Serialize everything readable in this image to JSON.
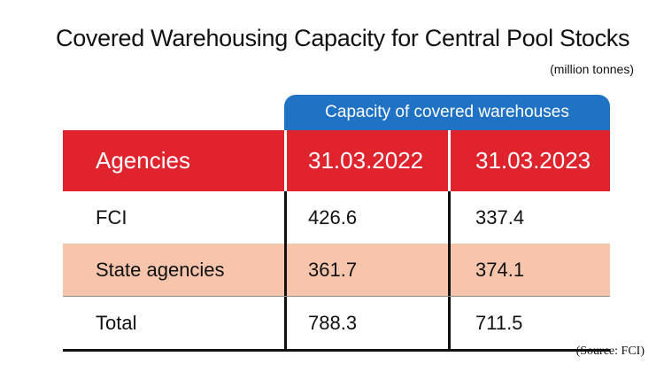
{
  "title": "Covered Warehousing Capacity for Central Pool Stocks",
  "unit": "(million tonnes)",
  "group_header": "Capacity of covered warehouses",
  "source": "(Source:  FCI)",
  "colors": {
    "group_header_bg": "#1f72c4",
    "header_row_bg": "#e0242e",
    "shaded_row_bg": "#f7c4ac"
  },
  "chart_data": {
    "type": "table",
    "title": "Covered Warehousing Capacity for Central Pool Stocks",
    "unit": "(million tonnes)",
    "group_header": "Capacity of covered warehouses",
    "columns": [
      "Agencies",
      "31.03.2022",
      "31.03.2023"
    ],
    "rows": [
      {
        "agency": "FCI",
        "values": [
          "426.6",
          "337.4"
        ]
      },
      {
        "agency": "State agencies",
        "values": [
          "361.7",
          "374.1"
        ]
      },
      {
        "agency": "Total",
        "values": [
          "788.3",
          "711.5"
        ]
      }
    ],
    "source": "(Source:  FCI)"
  }
}
